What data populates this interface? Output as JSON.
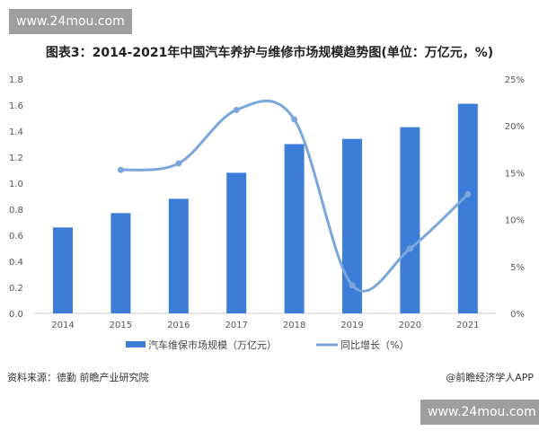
{
  "watermark": "www.24mou.com",
  "chart_data": {
    "type": "bar+line",
    "title": "图表3：2014-2021年中国汽车养护与维修市场规模趋势图(单位：万亿元，%)",
    "categories": [
      "2014",
      "2015",
      "2016",
      "2017",
      "2018",
      "2019",
      "2020",
      "2021"
    ],
    "series": [
      {
        "name": "汽车维保市场规模（万亿元）",
        "type": "bar",
        "axis": "left",
        "color": "#3b7dd8",
        "values": [
          0.66,
          0.77,
          0.88,
          1.08,
          1.3,
          1.34,
          1.43,
          1.61
        ]
      },
      {
        "name": "同比增长（%）",
        "type": "line",
        "axis": "right",
        "color": "#7aa6dc",
        "values": [
          null,
          15.3,
          16.0,
          21.7,
          20.7,
          3.0,
          6.9,
          12.7
        ]
      }
    ],
    "yleft": {
      "lim": [
        0,
        1.8
      ],
      "ticks": [
        "0.0",
        "0.2",
        "0.4",
        "0.6",
        "0.8",
        "1.0",
        "1.2",
        "1.4",
        "1.6",
        "1.8"
      ]
    },
    "yright": {
      "lim": [
        0,
        25
      ],
      "ticks": [
        "0%",
        "5%",
        "10%",
        "15%",
        "20%",
        "25%"
      ]
    },
    "legend": "bottom",
    "grid": false
  },
  "footer": {
    "source": "资料来源：德勤 前瞻产业研究院",
    "credit": "@前瞻经济学人APP"
  }
}
